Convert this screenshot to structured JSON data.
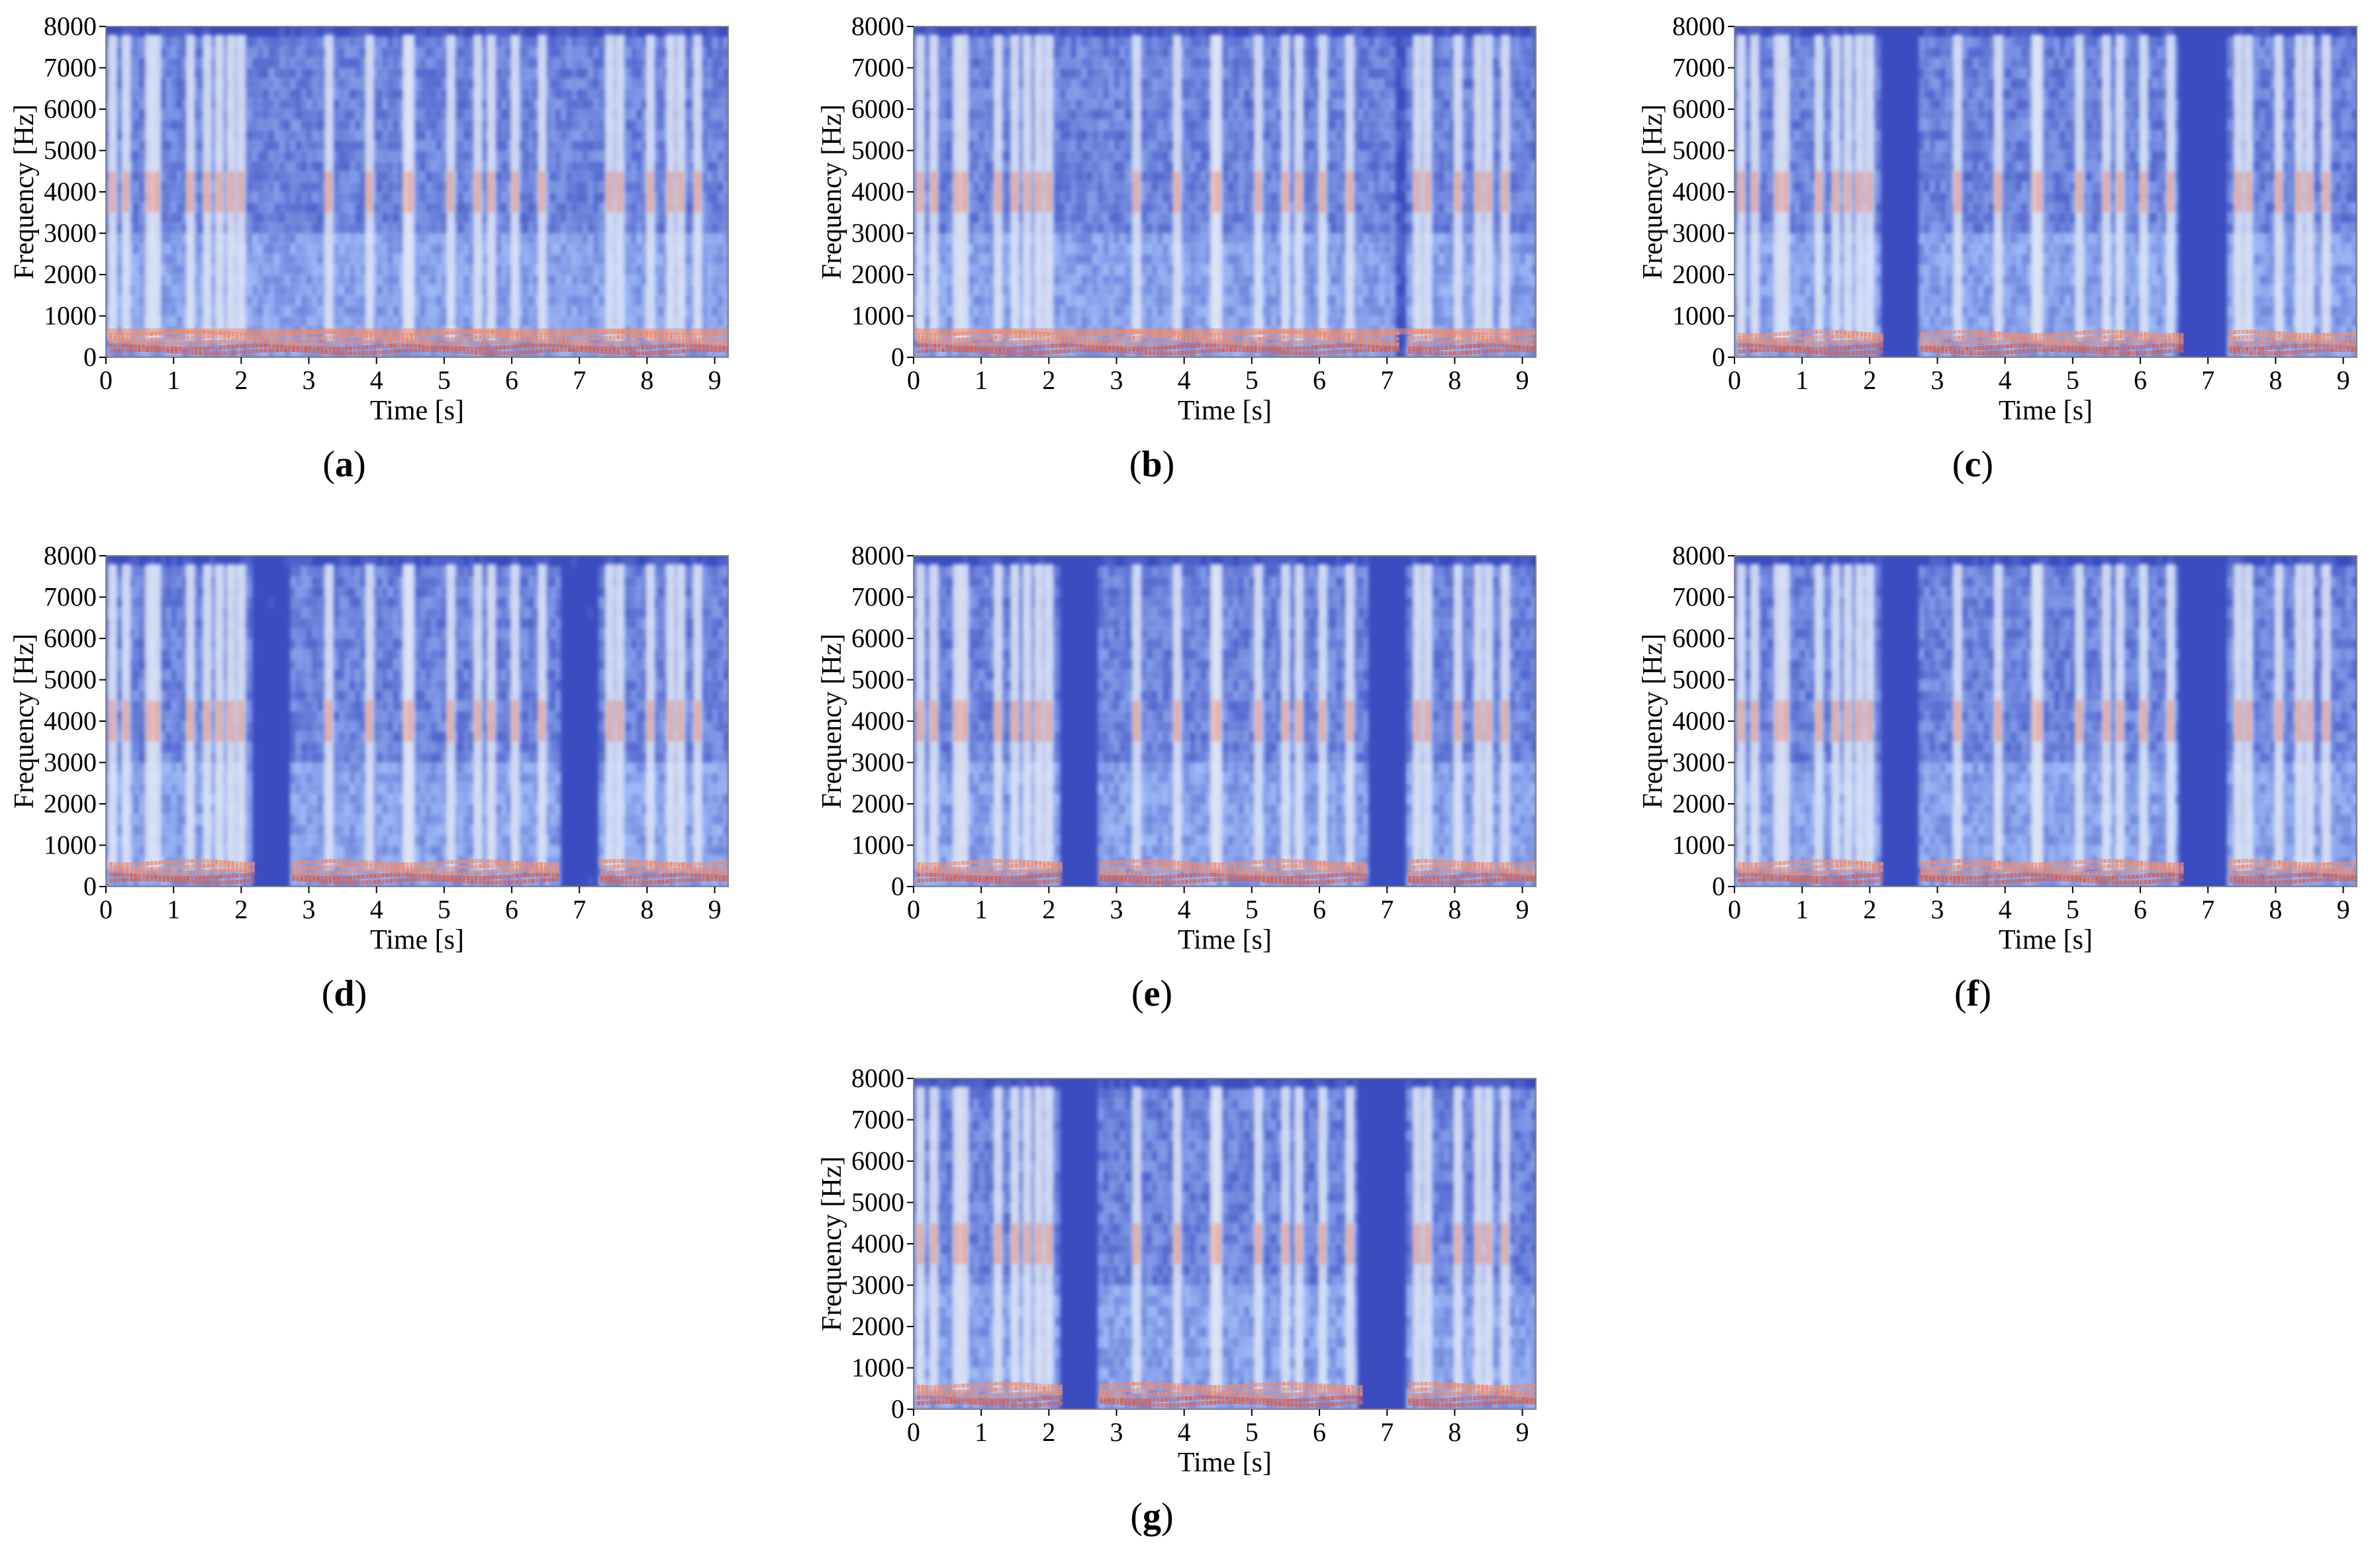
{
  "chart_data": [
    {
      "type": "heatmap",
      "panel_label": "a",
      "xlabel": "Time [s]",
      "ylabel": "Frequency [Hz]",
      "xlim": [
        0,
        9.2
      ],
      "ylim": [
        0,
        8000
      ],
      "xticks": [
        "0",
        "1",
        "2",
        "3",
        "4",
        "5",
        "6",
        "7",
        "8",
        "9"
      ],
      "yticks": [
        "0",
        "1000",
        "2000",
        "3000",
        "4000",
        "5000",
        "6000",
        "7000",
        "8000"
      ],
      "silence_segments_s": [],
      "noise_level": 0.9,
      "low_band": true
    },
    {
      "type": "heatmap",
      "panel_label": "b",
      "xlabel": "Time [s]",
      "ylabel": "Frequency [Hz]",
      "xlim": [
        0,
        9.2
      ],
      "ylim": [
        0,
        8000
      ],
      "xticks": [
        "0",
        "1",
        "2",
        "3",
        "4",
        "5",
        "6",
        "7",
        "8",
        "9"
      ],
      "yticks": [
        "0",
        "1000",
        "2000",
        "3000",
        "4000",
        "5000",
        "6000",
        "7000",
        "8000"
      ],
      "silence_segments_s": [
        [
          7.15,
          7.25
        ]
      ],
      "noise_level": 0.7,
      "low_band": true
    },
    {
      "type": "heatmap",
      "panel_label": "c",
      "xlabel": "Time [s]",
      "ylabel": "Frequency [Hz]",
      "xlim": [
        0,
        9.2
      ],
      "ylim": [
        0,
        8000
      ],
      "xticks": [
        "0",
        "1",
        "2",
        "3",
        "4",
        "5",
        "6",
        "7",
        "8",
        "9"
      ],
      "yticks": [
        "0",
        "1000",
        "2000",
        "3000",
        "4000",
        "5000",
        "6000",
        "7000",
        "8000"
      ],
      "silence_segments_s": [
        [
          2.2,
          2.7
        ],
        [
          6.6,
          7.3
        ]
      ],
      "noise_level": 0.15,
      "low_band": false
    },
    {
      "type": "heatmap",
      "panel_label": "d",
      "xlabel": "Time [s]",
      "ylabel": "Frequency [Hz]",
      "xlim": [
        0,
        9.2
      ],
      "ylim": [
        0,
        8000
      ],
      "xticks": [
        "0",
        "1",
        "2",
        "3",
        "4",
        "5",
        "6",
        "7",
        "8",
        "9"
      ],
      "yticks": [
        "0",
        "1000",
        "2000",
        "3000",
        "4000",
        "5000",
        "6000",
        "7000",
        "8000"
      ],
      "silence_segments_s": [
        [
          2.2,
          2.7
        ],
        [
          6.7,
          7.3
        ]
      ],
      "noise_level": 0.35,
      "low_band": false
    },
    {
      "type": "heatmap",
      "panel_label": "e",
      "xlabel": "Time [s]",
      "ylabel": "Frequency [Hz]",
      "xlim": [
        0,
        9.2
      ],
      "ylim": [
        0,
        8000
      ],
      "xticks": [
        "0",
        "1",
        "2",
        "3",
        "4",
        "5",
        "6",
        "7",
        "8",
        "9"
      ],
      "yticks": [
        "0",
        "1000",
        "2000",
        "3000",
        "4000",
        "5000",
        "6000",
        "7000",
        "8000"
      ],
      "silence_segments_s": [
        [
          2.2,
          2.7
        ],
        [
          6.7,
          7.3
        ]
      ],
      "noise_level": 0.3,
      "low_band": false
    },
    {
      "type": "heatmap",
      "panel_label": "f",
      "xlabel": "Time [s]",
      "ylabel": "Frequency [Hz]",
      "xlim": [
        0,
        9.2
      ],
      "ylim": [
        0,
        8000
      ],
      "xticks": [
        "0",
        "1",
        "2",
        "3",
        "4",
        "5",
        "6",
        "7",
        "8",
        "9"
      ],
      "yticks": [
        "0",
        "1000",
        "2000",
        "3000",
        "4000",
        "5000",
        "6000",
        "7000",
        "8000"
      ],
      "silence_segments_s": [
        [
          2.2,
          2.7
        ],
        [
          6.6,
          7.3
        ]
      ],
      "noise_level": 0.15,
      "low_band": false
    },
    {
      "type": "heatmap",
      "panel_label": "g",
      "xlabel": "Time [s]",
      "ylabel": "Frequency [Hz]",
      "xlim": [
        0,
        9.2
      ],
      "ylim": [
        0,
        8000
      ],
      "xticks": [
        "0",
        "1",
        "2",
        "3",
        "4",
        "5",
        "6",
        "7",
        "8",
        "9"
      ],
      "yticks": [
        "0",
        "1000",
        "2000",
        "3000",
        "4000",
        "5000",
        "6000",
        "7000",
        "8000"
      ],
      "silence_segments_s": [
        [
          2.2,
          2.7
        ],
        [
          6.6,
          7.3
        ]
      ],
      "noise_level": 0.2,
      "low_band": false
    }
  ],
  "colors": {
    "background": "#3b4cc0",
    "mid": "#aac7fd",
    "high": "#f08a6c",
    "peak": "#dd5f4b"
  }
}
